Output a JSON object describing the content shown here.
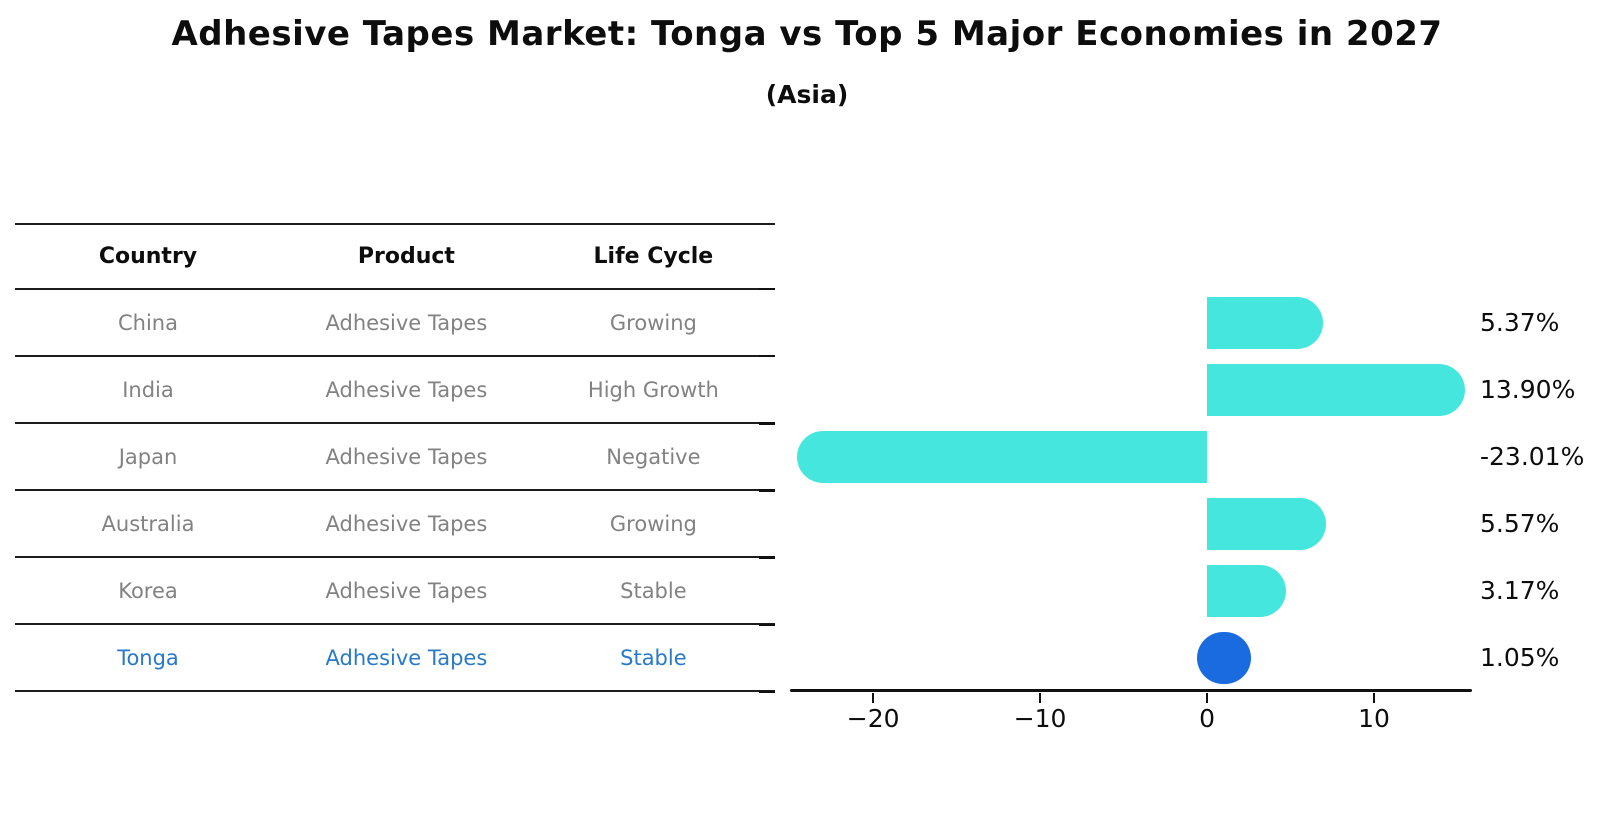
{
  "title": "Adhesive Tapes Market: Tonga vs Top 5 Major Economies in 2027",
  "subtitle": "(Asia)",
  "colors": {
    "bar": "#45e6de",
    "highlight_bar": "#1b6be0",
    "highlight_text": "#2879c9",
    "cell_text": "#828282",
    "header_text": "#0d0d0d",
    "line": "#1c1c1c"
  },
  "table": {
    "headers": [
      "Country",
      "Product",
      "Life Cycle"
    ],
    "rows": [
      {
        "country": "China",
        "product": "Adhesive Tapes",
        "life_cycle": "Growing",
        "highlight": false
      },
      {
        "country": "India",
        "product": "Adhesive Tapes",
        "life_cycle": "High Growth",
        "highlight": false
      },
      {
        "country": "Japan",
        "product": "Adhesive Tapes",
        "life_cycle": "Negative",
        "highlight": false
      },
      {
        "country": "Australia",
        "product": "Adhesive Tapes",
        "life_cycle": "Growing",
        "highlight": false
      },
      {
        "country": "Korea",
        "product": "Adhesive Tapes",
        "life_cycle": "Stable",
        "highlight": false
      },
      {
        "country": "Tonga",
        "product": "Adhesive Tapes",
        "life_cycle": "Stable",
        "highlight": true
      }
    ]
  },
  "chart_data": {
    "type": "bar",
    "orientation": "horizontal",
    "title": "Adhesive Tapes Market: Tonga vs Top 5 Major Economies in 2027 (Asia)",
    "categories": [
      "China",
      "India",
      "Japan",
      "Australia",
      "Korea",
      "Tonga"
    ],
    "values": [
      5.37,
      13.9,
      -23.01,
      5.57,
      3.17,
      1.05
    ],
    "value_labels": [
      "5.37%",
      "13.90%",
      "-23.01%",
      "5.57%",
      "3.17%",
      "1.05%"
    ],
    "highlight_index": 5,
    "xlabel": "",
    "ylabel": "",
    "xticks": [
      -20,
      -10,
      0,
      10
    ],
    "xtick_labels": [
      "−20",
      "−10",
      "0",
      "10"
    ],
    "xlim": [
      -24.86,
      15.75
    ],
    "grid": false,
    "legend": "none"
  }
}
